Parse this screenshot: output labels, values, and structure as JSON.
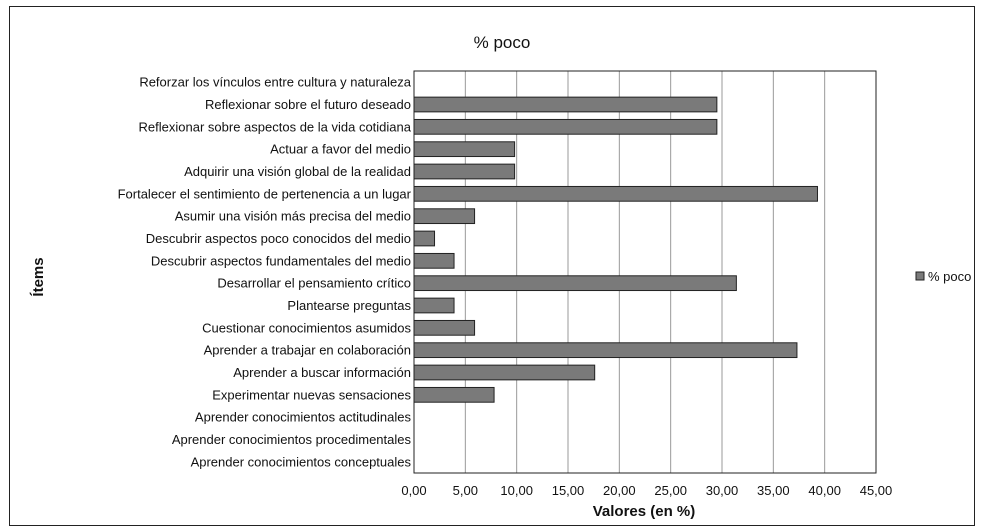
{
  "chart_data": {
    "type": "bar",
    "orientation": "horizontal",
    "title": "% poco",
    "xlabel": "Valores (en %)",
    "ylabel": "Ítems",
    "xlim": [
      0,
      45
    ],
    "x_ticks": [
      "0,00",
      "5,00",
      "10,00",
      "15,00",
      "20,00",
      "25,00",
      "30,00",
      "35,00",
      "40,00",
      "45,00"
    ],
    "grid": "vertical",
    "legend_position": "right",
    "series": [
      {
        "name": "% poco",
        "color": "#7a7a7a",
        "values": [
          0,
          29.5,
          29.5,
          9.8,
          9.8,
          39.3,
          5.9,
          2.0,
          3.9,
          31.4,
          3.9,
          5.9,
          37.3,
          17.6,
          7.8,
          0,
          0,
          0
        ]
      }
    ],
    "categories": [
      "Reforzar los vínculos entre cultura y naturaleza",
      "Reflexionar sobre el futuro deseado",
      "Reflexionar sobre aspectos de la vida cotidiana",
      "Actuar a favor del medio",
      "Adquirir una visión global de la realidad",
      "Fortalecer el sentimiento de pertenencia a un lugar",
      "Asumir una visión más precisa del medio",
      "Descubrir aspectos poco conocidos del medio",
      "Descubrir aspectos fundamentales del medio",
      "Desarrollar el pensamiento crítico",
      "Plantearse preguntas",
      "Cuestionar conocimientos asumidos",
      "Aprender a trabajar en colaboración",
      "Aprender a buscar información",
      "Experimentar nuevas sensaciones",
      "Aprender conocimientos actitudinales",
      "Aprender conocimientos procedimentales",
      "Aprender conocimientos conceptuales"
    ]
  }
}
